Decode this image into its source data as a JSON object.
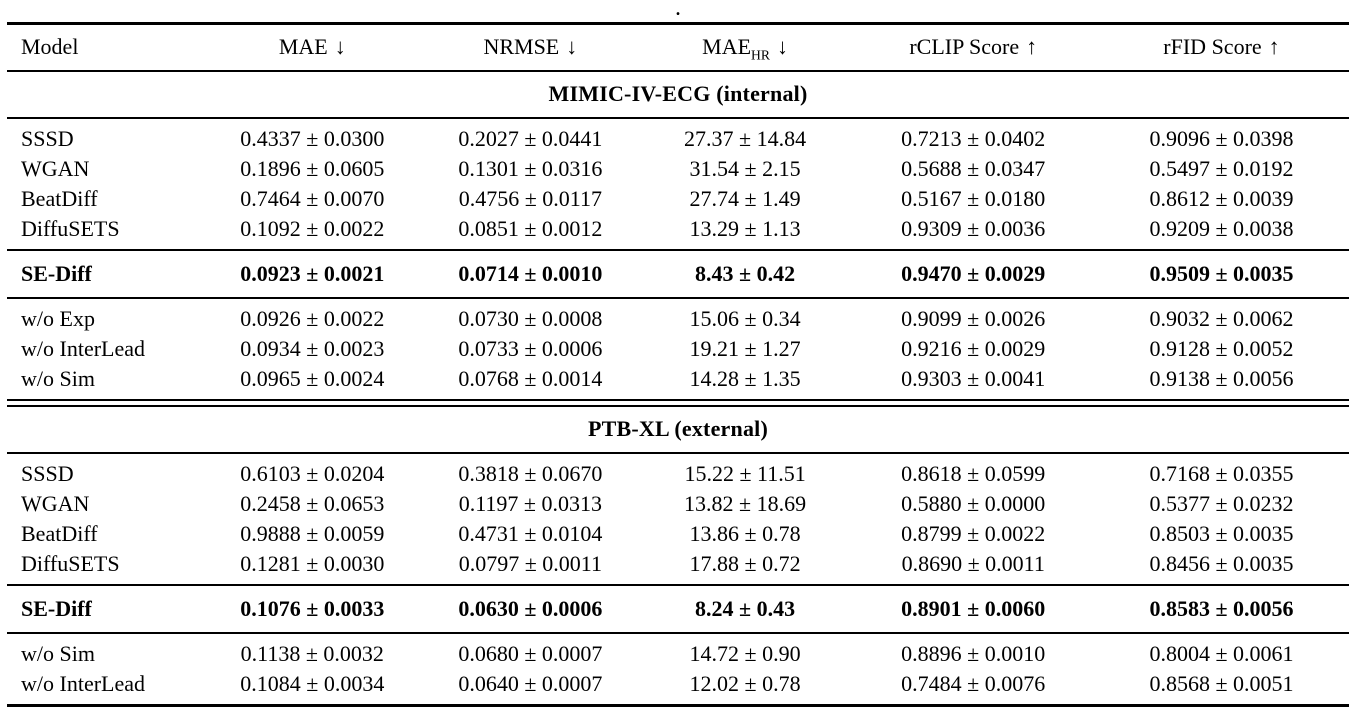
{
  "caption": {
    "dot": "."
  },
  "table": {
    "headers": {
      "model": {
        "label": "Model"
      },
      "mae": {
        "label": "MAE",
        "arrow": "↓"
      },
      "nrmse": {
        "label": "NRMSE",
        "arrow": "↓"
      },
      "mae_hr": {
        "label": "MAE",
        "sub": "HR",
        "arrow": "↓"
      },
      "rclip": {
        "label": "rCLIP Score",
        "arrow": "↑"
      },
      "rfid": {
        "label": "rFID Score",
        "arrow": "↑"
      }
    },
    "sections": [
      {
        "title": "MIMIC-IV-ECG (internal)",
        "rows": [
          {
            "model": "SSSD",
            "mae": "0.4337 ± 0.0300",
            "nrmse": "0.2027 ± 0.0441",
            "mae_hr": "27.37 ± 14.84",
            "rclip": "0.7213 ± 0.0402",
            "rfid": "0.9096 ± 0.0398"
          },
          {
            "model": "WGAN",
            "mae": "0.1896 ± 0.0605",
            "nrmse": "0.1301 ± 0.0316",
            "mae_hr": "31.54 ± 2.15",
            "rclip": "0.5688 ± 0.0347",
            "rfid": "0.5497 ± 0.0192"
          },
          {
            "model": "BeatDiff",
            "mae": "0.7464 ± 0.0070",
            "nrmse": "0.4756 ± 0.0117",
            "mae_hr": "27.74 ± 1.49",
            "rclip": "0.5167 ± 0.0180",
            "rfid": "0.8612 ± 0.0039"
          },
          {
            "model": "DiffuSETS",
            "mae": "0.1092 ± 0.0022",
            "nrmse": "0.0851 ± 0.0012",
            "mae_hr": "13.29 ± 1.13",
            "rclip": "0.9309 ± 0.0036",
            "rfid": "0.9209 ± 0.0038"
          }
        ],
        "highlight": {
          "model": "SE-Diff",
          "mae": "0.0923 ± 0.0021",
          "nrmse": "0.0714 ± 0.0010",
          "mae_hr": "8.43 ± 0.42",
          "rclip": "0.9470 ± 0.0029",
          "rfid": "0.9509 ± 0.0035"
        },
        "ablations": [
          {
            "model": "w/o Exp",
            "mae": "0.0926 ± 0.0022",
            "nrmse": "0.0730 ± 0.0008",
            "mae_hr": "15.06 ± 0.34",
            "rclip": "0.9099 ± 0.0026",
            "rfid": "0.9032 ± 0.0062"
          },
          {
            "model": "w/o InterLead",
            "mae": "0.0934 ± 0.0023",
            "nrmse": "0.0733 ± 0.0006",
            "mae_hr": "19.21 ± 1.27",
            "rclip": "0.9216 ± 0.0029",
            "rfid": "0.9128 ± 0.0052"
          },
          {
            "model": "w/o Sim",
            "mae": "0.0965 ± 0.0024",
            "nrmse": "0.0768 ± 0.0014",
            "mae_hr": "14.28 ± 1.35",
            "rclip": "0.9303 ± 0.0041",
            "rfid": "0.9138 ± 0.0056"
          }
        ]
      },
      {
        "title": "PTB-XL (external)",
        "rows": [
          {
            "model": "SSSD",
            "mae": "0.6103 ± 0.0204",
            "nrmse": "0.3818 ± 0.0670",
            "mae_hr": "15.22 ± 11.51",
            "rclip": "0.8618 ± 0.0599",
            "rfid": "0.7168 ± 0.0355"
          },
          {
            "model": "WGAN",
            "mae": "0.2458 ± 0.0653",
            "nrmse": "0.1197 ± 0.0313",
            "mae_hr": "13.82 ± 18.69",
            "rclip": "0.5880 ± 0.0000",
            "rfid": "0.5377 ± 0.0232"
          },
          {
            "model": "BeatDiff",
            "mae": "0.9888 ± 0.0059",
            "nrmse": "0.4731 ± 0.0104",
            "mae_hr": "13.86 ± 0.78",
            "rclip": "0.8799 ± 0.0022",
            "rfid": "0.8503 ± 0.0035"
          },
          {
            "model": "DiffuSETS",
            "mae": "0.1281 ± 0.0030",
            "nrmse": "0.0797 ± 0.0011",
            "mae_hr": "17.88 ± 0.72",
            "rclip": "0.8690 ± 0.0011",
            "rfid": "0.8456 ± 0.0035"
          }
        ],
        "highlight": {
          "model": "SE-Diff",
          "mae": "0.1076 ± 0.0033",
          "nrmse": "0.0630 ± 0.0006",
          "mae_hr": "8.24 ± 0.43",
          "rclip": "0.8901 ± 0.0060",
          "rfid": "0.8583 ± 0.0056"
        },
        "ablations": [
          {
            "model": "w/o Sim",
            "mae": "0.1138 ± 0.0032",
            "nrmse": "0.0680 ± 0.0007",
            "mae_hr": "14.72 ± 0.90",
            "rclip": "0.8896 ± 0.0010",
            "rfid": "0.8004 ± 0.0061"
          },
          {
            "model": "w/o InterLead",
            "mae": "0.1084 ± 0.0034",
            "nrmse": "0.0640 ± 0.0007",
            "mae_hr": "12.02 ± 0.78",
            "rclip": "0.7484 ± 0.0076",
            "rfid": "0.8568 ± 0.0051"
          }
        ]
      }
    ]
  }
}
